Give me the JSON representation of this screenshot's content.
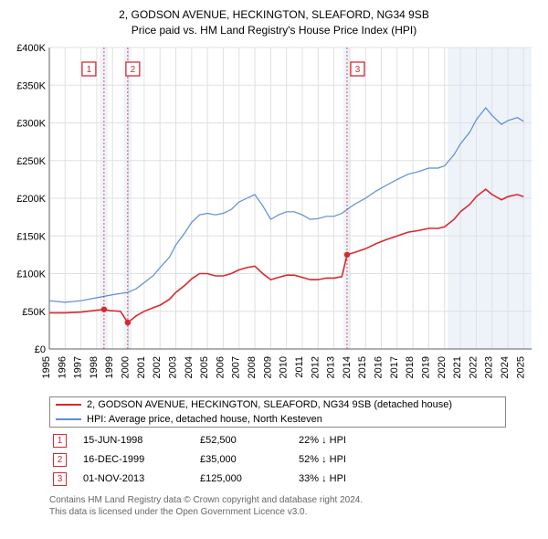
{
  "title_line1": "2, GODSON AVENUE, HECKINGTON, SLEAFORD, NG34 9SB",
  "title_line2": "Price paid vs. HM Land Registry's House Price Index (HPI)",
  "chart": {
    "type": "line",
    "background_color": "#ffffff",
    "grid_color": "#e0e0e0",
    "axis_color": "#606060",
    "shade_color": "#eef3fa",
    "x_years": [
      1995,
      1996,
      1997,
      1998,
      1999,
      2000,
      2001,
      2002,
      2003,
      2004,
      2005,
      2006,
      2007,
      2008,
      2009,
      2010,
      2011,
      2012,
      2013,
      2014,
      2015,
      2016,
      2017,
      2018,
      2019,
      2020,
      2021,
      2022,
      2023,
      2024,
      2025
    ],
    "xlim": [
      1995,
      2025.5
    ],
    "ylim": [
      0,
      400000
    ],
    "ytick_step": 50000,
    "ytick_labels": [
      "£0",
      "£50K",
      "£100K",
      "£150K",
      "£200K",
      "£250K",
      "£300K",
      "£350K",
      "£400K"
    ],
    "series_red": {
      "label": "2, GODSON AVENUE, HECKINGTON, SLEAFORD, NG34 9SB (detached house)",
      "color": "#d8292f",
      "data": [
        [
          1995,
          48000
        ],
        [
          1996,
          48000
        ],
        [
          1997,
          49000
        ],
        [
          1998.46,
          52500
        ],
        [
          1998.8,
          51000
        ],
        [
          1999.5,
          50000
        ],
        [
          1999.96,
          35000
        ],
        [
          2000.5,
          44000
        ],
        [
          2001,
          50000
        ],
        [
          2001.6,
          55000
        ],
        [
          2002,
          58000
        ],
        [
          2002.6,
          66000
        ],
        [
          2003,
          75000
        ],
        [
          2003.6,
          85000
        ],
        [
          2004,
          93000
        ],
        [
          2004.5,
          100000
        ],
        [
          2005,
          100000
        ],
        [
          2005.5,
          97000
        ],
        [
          2006,
          97000
        ],
        [
          2006.5,
          100000
        ],
        [
          2007,
          105000
        ],
        [
          2007.5,
          108000
        ],
        [
          2008,
          110000
        ],
        [
          2008.5,
          100000
        ],
        [
          2009,
          92000
        ],
        [
          2009.5,
          95000
        ],
        [
          2010,
          98000
        ],
        [
          2010.5,
          98000
        ],
        [
          2011,
          95000
        ],
        [
          2011.5,
          92000
        ],
        [
          2012,
          92000
        ],
        [
          2012.5,
          94000
        ],
        [
          2013,
          94000
        ],
        [
          2013.5,
          96000
        ],
        [
          2013.83,
          125000
        ],
        [
          2014.3,
          128000
        ],
        [
          2015,
          133000
        ],
        [
          2015.7,
          140000
        ],
        [
          2016.3,
          145000
        ],
        [
          2017,
          150000
        ],
        [
          2017.7,
          155000
        ],
        [
          2018.3,
          157000
        ],
        [
          2019,
          160000
        ],
        [
          2019.6,
          160000
        ],
        [
          2020,
          162000
        ],
        [
          2020.6,
          172000
        ],
        [
          2021,
          182000
        ],
        [
          2021.6,
          192000
        ],
        [
          2022,
          202000
        ],
        [
          2022.6,
          212000
        ],
        [
          2023,
          205000
        ],
        [
          2023.6,
          198000
        ],
        [
          2024,
          202000
        ],
        [
          2024.6,
          205000
        ],
        [
          2025,
          202000
        ]
      ]
    },
    "series_blue": {
      "label": "HPI: Average price, detached house, North Kesteven",
      "color": "#5b8dd6",
      "data": [
        [
          1995,
          64000
        ],
        [
          1996,
          62000
        ],
        [
          1997,
          64000
        ],
        [
          1998,
          68000
        ],
        [
          1999,
          72000
        ],
        [
          1999.96,
          75000
        ],
        [
          2000.5,
          80000
        ],
        [
          2001,
          88000
        ],
        [
          2001.6,
          98000
        ],
        [
          2002,
          108000
        ],
        [
          2002.6,
          122000
        ],
        [
          2003,
          138000
        ],
        [
          2003.6,
          155000
        ],
        [
          2004,
          168000
        ],
        [
          2004.5,
          178000
        ],
        [
          2005,
          180000
        ],
        [
          2005.5,
          178000
        ],
        [
          2006,
          180000
        ],
        [
          2006.5,
          185000
        ],
        [
          2007,
          195000
        ],
        [
          2007.5,
          200000
        ],
        [
          2008,
          205000
        ],
        [
          2008.5,
          190000
        ],
        [
          2009,
          172000
        ],
        [
          2009.5,
          178000
        ],
        [
          2010,
          182000
        ],
        [
          2010.5,
          182000
        ],
        [
          2011,
          178000
        ],
        [
          2011.5,
          172000
        ],
        [
          2012,
          173000
        ],
        [
          2012.5,
          176000
        ],
        [
          2013,
          176000
        ],
        [
          2013.5,
          180000
        ],
        [
          2013.83,
          185000
        ],
        [
          2014.3,
          192000
        ],
        [
          2015,
          200000
        ],
        [
          2015.7,
          210000
        ],
        [
          2016.3,
          217000
        ],
        [
          2017,
          225000
        ],
        [
          2017.7,
          232000
        ],
        [
          2018.3,
          235000
        ],
        [
          2019,
          240000
        ],
        [
          2019.6,
          240000
        ],
        [
          2020,
          243000
        ],
        [
          2020.6,
          258000
        ],
        [
          2021,
          272000
        ],
        [
          2021.6,
          288000
        ],
        [
          2022,
          304000
        ],
        [
          2022.6,
          320000
        ],
        [
          2023,
          310000
        ],
        [
          2023.6,
          298000
        ],
        [
          2024,
          303000
        ],
        [
          2024.6,
          307000
        ],
        [
          2025,
          302000
        ]
      ]
    },
    "markers": [
      {
        "n": "1",
        "year": 1998.46,
        "price": 52500
      },
      {
        "n": "2",
        "year": 1999.96,
        "price": 35000
      },
      {
        "n": "3",
        "year": 2013.83,
        "price": 125000
      }
    ],
    "shaded_ranges": [
      [
        1998.2,
        1998.7
      ],
      [
        1999.7,
        2000.2
      ],
      [
        2013.6,
        2014.05
      ],
      [
        2020.2,
        2025.5
      ]
    ]
  },
  "legend": {
    "red_label": "2, GODSON AVENUE, HECKINGTON, SLEAFORD, NG34 9SB (detached house)",
    "blue_label": "HPI: Average price, detached house, North Kesteven"
  },
  "events": [
    {
      "n": "1",
      "date": "15-JUN-1998",
      "price": "£52,500",
      "pct": "22% ↓ HPI"
    },
    {
      "n": "2",
      "date": "16-DEC-1999",
      "price": "£35,000",
      "pct": "52% ↓ HPI"
    },
    {
      "n": "3",
      "date": "01-NOV-2013",
      "price": "£125,000",
      "pct": "33% ↓ HPI"
    }
  ],
  "footer_line1": "Contains HM Land Registry data © Crown copyright and database right 2024.",
  "footer_line2": "This data is licensed under the Open Government Licence v3.0."
}
